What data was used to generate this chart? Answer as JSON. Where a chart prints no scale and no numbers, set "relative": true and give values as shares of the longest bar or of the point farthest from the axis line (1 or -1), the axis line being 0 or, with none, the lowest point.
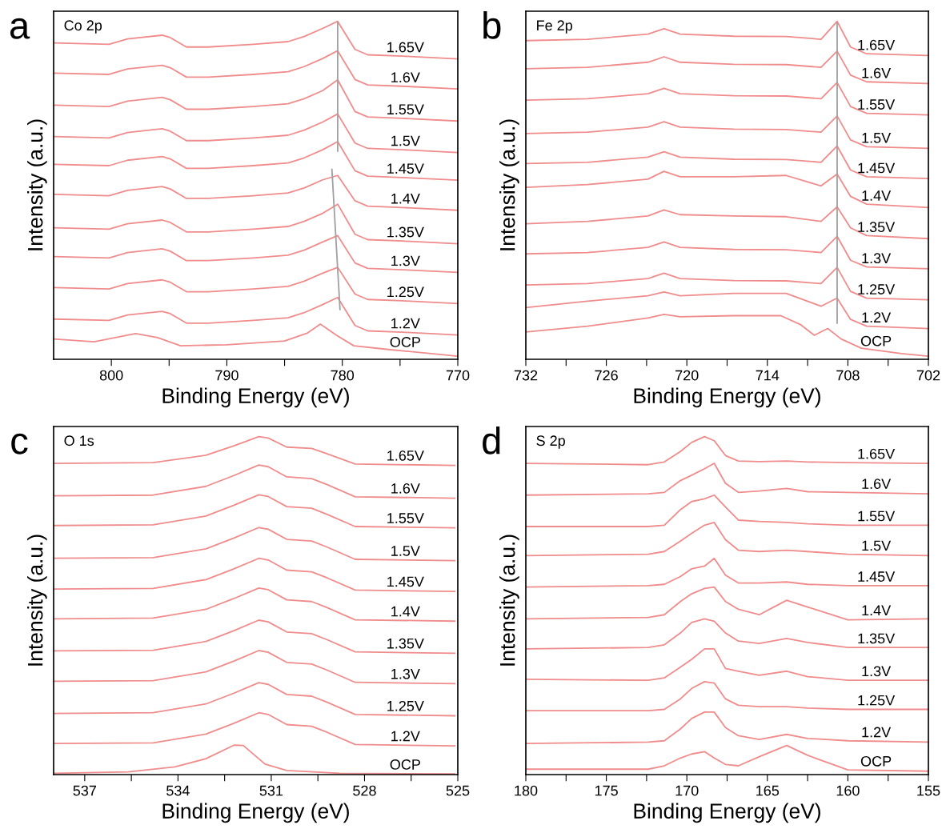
{
  "chart_data": [
    {
      "type": "line",
      "relative": true,
      "title": "Co 2p",
      "annotations": [
        "a"
      ],
      "xlabel": "Binding Energy (eV)",
      "ylabel": "Intensity (a.u.)",
      "xlim": [
        805,
        770
      ],
      "xticks": [
        800,
        {
          "value": 795,
          "label": null
        },
        790,
        {
          "value": 785,
          "label": null
        },
        780,
        {
          "value": 775,
          "label": null
        },
        770
      ],
      "x": [
        805,
        800.2,
        798.6,
        795.6,
        794.9,
        793.5,
        791.6,
        787.7,
        784.7,
        783.3,
        781.7,
        780.4,
        778.9,
        777.8,
        774.8,
        770
      ],
      "series": [
        {
          "name": "1.65V",
          "color": "#f08c8c",
          "values": [
            0.936,
            0.932,
            0.948,
            0.959,
            0.952,
            0.924,
            0.924,
            0.932,
            0.94,
            0.955,
            0.979,
            1.0,
            0.917,
            0.901,
            0.897,
            0.889
          ]
        },
        {
          "name": "1.6V",
          "color": "#f08c8c",
          "values": [
            0.847,
            0.843,
            0.859,
            0.87,
            0.863,
            0.835,
            0.835,
            0.843,
            0.851,
            0.866,
            0.89,
            0.913,
            0.828,
            0.812,
            0.808,
            0.8
          ]
        },
        {
          "name": "1.55V",
          "color": "#f08c8c",
          "values": [
            0.752,
            0.748,
            0.764,
            0.775,
            0.768,
            0.74,
            0.74,
            0.748,
            0.756,
            0.771,
            0.795,
            0.827,
            0.733,
            0.717,
            0.713,
            0.705
          ]
        },
        {
          "name": "1.5V",
          "color": "#f08c8c",
          "values": [
            0.659,
            0.655,
            0.671,
            0.682,
            0.675,
            0.647,
            0.647,
            0.655,
            0.663,
            0.678,
            0.702,
            0.726,
            0.64,
            0.624,
            0.62,
            0.612
          ]
        },
        {
          "name": "1.45V",
          "color": "#f08c8c",
          "values": [
            0.577,
            0.573,
            0.589,
            0.6,
            0.593,
            0.565,
            0.565,
            0.573,
            0.581,
            0.596,
            0.62,
            0.644,
            0.558,
            0.542,
            0.538,
            0.53
          ]
        },
        {
          "name": "1.4V",
          "color": "#f08c8c",
          "values": [
            0.488,
            0.484,
            0.5,
            0.511,
            0.504,
            0.476,
            0.476,
            0.484,
            0.492,
            0.507,
            0.531,
            0.544,
            0.469,
            0.453,
            0.449,
            0.441
          ]
        },
        {
          "name": "1.35V",
          "color": "#f08c8c",
          "values": [
            0.389,
            0.385,
            0.401,
            0.412,
            0.405,
            0.377,
            0.377,
            0.385,
            0.393,
            0.408,
            0.432,
            0.459,
            0.37,
            0.354,
            0.35,
            0.342
          ]
        },
        {
          "name": "1.3V",
          "color": "#f08c8c",
          "values": [
            0.304,
            0.3,
            0.316,
            0.327,
            0.32,
            0.292,
            0.292,
            0.3,
            0.308,
            0.323,
            0.347,
            0.366,
            0.285,
            0.269,
            0.265,
            0.257
          ]
        },
        {
          "name": "1.25V",
          "color": "#f08c8c",
          "values": [
            0.212,
            0.208,
            0.224,
            0.235,
            0.228,
            0.2,
            0.2,
            0.208,
            0.216,
            0.231,
            0.255,
            0.272,
            0.193,
            0.177,
            0.173,
            0.165
          ]
        },
        {
          "name": "1.2V",
          "color": "#f08c8c",
          "values": [
            0.119,
            0.115,
            0.131,
            0.142,
            0.135,
            0.107,
            0.107,
            0.115,
            0.123,
            0.138,
            0.162,
            0.183,
            0.1,
            0.084,
            0.08,
            0.072
          ]
        },
        {
          "name": "OCP",
          "color": "#f08c8c",
          "x": [
            805,
            801.5,
            797.9,
            796,
            794,
            790,
            785,
            783,
            781.9,
            780.5,
            779,
            776,
            770
          ],
          "values": [
            0.06,
            0.052,
            0.076,
            0.064,
            0.04,
            0.043,
            0.054,
            0.078,
            0.104,
            0.071,
            0.04,
            0.029,
            0.009
          ]
        },
        {
          "color": "#a0a0a0",
          "x": [
            780.4,
            780.4
          ],
          "values": [
            0.998,
            0.616
          ]
        },
        {
          "color": "#a0a0a0",
          "x": [
            780.9,
            780.2
          ],
          "values": [
            0.562,
            0.147
          ]
        }
      ]
    },
    {
      "type": "line",
      "relative": true,
      "title": "Fe 2p",
      "annotations": [
        "b"
      ],
      "xlabel": "Binding Energy (eV)",
      "ylabel": "Intensity (a.u.)",
      "xlim": [
        732,
        702
      ],
      "xticks": [
        732,
        {
          "value": 729,
          "label": null
        },
        726,
        {
          "value": 723,
          "label": null
        },
        720,
        {
          "value": 717,
          "label": null
        },
        714,
        {
          "value": 711,
          "label": null
        },
        708,
        {
          "value": 705,
          "label": null
        },
        702
      ],
      "x": [
        732,
        727.4,
        722.9,
        721.7,
        720.5,
        716.5,
        712.6,
        710,
        708.8,
        707.8,
        706.6,
        702
      ],
      "series": [
        {
          "name": "1.65V",
          "color": "#f08c8c",
          "values": [
            0.943,
            0.947,
            0.962,
            0.978,
            0.962,
            0.956,
            0.955,
            0.947,
            1.0,
            0.924,
            0.904,
            0.899
          ]
        },
        {
          "name": "1.6V",
          "color": "#f08c8c",
          "values": [
            0.86,
            0.864,
            0.879,
            0.895,
            0.879,
            0.873,
            0.872,
            0.864,
            0.912,
            0.841,
            0.821,
            0.816
          ]
        },
        {
          "name": "1.55V",
          "color": "#f08c8c",
          "values": [
            0.767,
            0.771,
            0.786,
            0.802,
            0.786,
            0.78,
            0.779,
            0.771,
            0.819,
            0.748,
            0.728,
            0.723
          ]
        },
        {
          "name": "1.5V",
          "color": "#f08c8c",
          "values": [
            0.668,
            0.672,
            0.687,
            0.703,
            0.687,
            0.681,
            0.68,
            0.672,
            0.72,
            0.649,
            0.629,
            0.624
          ]
        },
        {
          "name": "1.45V",
          "color": "#f08c8c",
          "values": [
            0.579,
            0.583,
            0.598,
            0.614,
            0.598,
            0.592,
            0.591,
            0.583,
            0.631,
            0.56,
            0.54,
            0.535
          ]
        },
        {
          "name": "1.4V",
          "color": "#f08c8c",
          "values": [
            0.509,
            0.517,
            0.533,
            0.556,
            0.54,
            0.54,
            0.544,
            0.513,
            0.548,
            0.482,
            0.459,
            0.449
          ]
        },
        {
          "name": "1.35V",
          "color": "#f08c8c",
          "values": [
            0.401,
            0.408,
            0.424,
            0.442,
            0.428,
            0.424,
            0.422,
            0.408,
            0.451,
            0.389,
            0.366,
            0.357
          ]
        },
        {
          "name": "1.3V",
          "color": "#f08c8c",
          "values": [
            0.312,
            0.316,
            0.331,
            0.347,
            0.331,
            0.325,
            0.324,
            0.316,
            0.364,
            0.293,
            0.273,
            0.268
          ]
        },
        {
          "name": "1.25V",
          "color": "#f08c8c",
          "values": [
            0.22,
            0.224,
            0.239,
            0.255,
            0.239,
            0.233,
            0.232,
            0.224,
            0.272,
            0.201,
            0.181,
            0.176
          ]
        },
        {
          "name": "1.2V",
          "color": "#f08c8c",
          "values": [
            0.153,
            0.172,
            0.188,
            0.199,
            0.188,
            0.195,
            0.195,
            0.157,
            0.181,
            0.118,
            0.098,
            0.091
          ]
        },
        {
          "name": "OCP",
          "color": "#f08c8c",
          "x": [
            732,
            727.4,
            722.9,
            721.7,
            720.5,
            716.5,
            713,
            711.5,
            710.5,
            709.5,
            708.5,
            707,
            704,
            702
          ],
          "values": [
            0.081,
            0.098,
            0.122,
            0.133,
            0.126,
            0.129,
            0.129,
            0.102,
            0.071,
            0.091,
            0.06,
            0.033,
            0.017,
            0.009
          ]
        },
        {
          "color": "#a0a0a0",
          "x": [
            708.8,
            708.8
          ],
          "values": [
            0.995,
            0.107
          ]
        }
      ]
    },
    {
      "type": "line",
      "relative": true,
      "title": "O 1s",
      "annotations": [
        "c"
      ],
      "xlabel": "Binding Energy (eV)",
      "ylabel": "Intensity (a.u.)",
      "xlim": [
        538,
        525
      ],
      "xticks": [
        537,
        {
          "value": 535.5,
          "label": null
        },
        534,
        {
          "value": 532.5,
          "label": null
        },
        531,
        {
          "value": 529.5,
          "label": null
        },
        528,
        {
          "value": 526.5,
          "label": null
        },
        525
      ],
      "x": [
        538,
        534.8,
        533.1,
        532.2,
        531.4,
        531.1,
        530.5,
        529.7,
        529.2,
        528.3,
        525.1
      ],
      "series": [
        {
          "name": "1.65V",
          "color": "#f08c8c",
          "values": [
            0.921,
            0.923,
            0.945,
            0.973,
            1.0,
            0.996,
            0.969,
            0.965,
            0.949,
            0.919,
            0.915
          ]
        },
        {
          "name": "1.6V",
          "color": "#f08c8c",
          "values": [
            0.825,
            0.827,
            0.853,
            0.885,
            0.916,
            0.911,
            0.881,
            0.876,
            0.858,
            0.822,
            0.818
          ]
        },
        {
          "name": "1.55V",
          "color": "#f08c8c",
          "values": [
            0.737,
            0.739,
            0.765,
            0.797,
            0.828,
            0.823,
            0.793,
            0.788,
            0.77,
            0.734,
            0.73
          ]
        },
        {
          "name": "1.5V",
          "color": "#f08c8c",
          "values": [
            0.64,
            0.642,
            0.668,
            0.7,
            0.731,
            0.726,
            0.696,
            0.691,
            0.673,
            0.637,
            0.633
          ]
        },
        {
          "name": "1.45V",
          "color": "#f08c8c",
          "values": [
            0.549,
            0.551,
            0.577,
            0.609,
            0.64,
            0.635,
            0.605,
            0.6,
            0.582,
            0.546,
            0.542
          ]
        },
        {
          "name": "1.4V",
          "color": "#f08c8c",
          "values": [
            0.461,
            0.463,
            0.489,
            0.521,
            0.552,
            0.547,
            0.517,
            0.512,
            0.494,
            0.458,
            0.454
          ]
        },
        {
          "name": "1.35V",
          "color": "#f08c8c",
          "values": [
            0.366,
            0.368,
            0.394,
            0.426,
            0.457,
            0.452,
            0.422,
            0.417,
            0.399,
            0.363,
            0.359
          ]
        },
        {
          "name": "1.3V",
          "color": "#f08c8c",
          "values": [
            0.276,
            0.278,
            0.304,
            0.336,
            0.367,
            0.362,
            0.332,
            0.327,
            0.309,
            0.273,
            0.269
          ]
        },
        {
          "name": "1.25V",
          "color": "#f08c8c",
          "values": [
            0.181,
            0.183,
            0.209,
            0.241,
            0.272,
            0.267,
            0.237,
            0.232,
            0.214,
            0.178,
            0.174
          ]
        },
        {
          "name": "1.2V",
          "color": "#f08c8c",
          "values": [
            0.092,
            0.094,
            0.12,
            0.152,
            0.183,
            0.178,
            0.148,
            0.143,
            0.125,
            0.089,
            0.085
          ]
        },
        {
          "name": "OCP",
          "color": "#f08c8c",
          "x": [
            538,
            535.6,
            534.1,
            533.1,
            532.2,
            531.9,
            531.2,
            530.5,
            528.8,
            525.1
          ],
          "values": [
            0.004,
            0.008,
            0.023,
            0.047,
            0.087,
            0.086,
            0.031,
            0.012,
            0.004,
            0.002
          ]
        }
      ]
    },
    {
      "type": "line",
      "relative": true,
      "title": "S 2p",
      "annotations": [
        "d"
      ],
      "xlabel": "Binding Energy (eV)",
      "ylabel": "Intensity (a.u.)",
      "xlim": [
        180,
        155
      ],
      "xticks": [
        180,
        {
          "value": 177.5,
          "label": null
        },
        175,
        {
          "value": 172.5,
          "label": null
        },
        170,
        {
          "value": 167.5,
          "label": null
        },
        165,
        {
          "value": 162.5,
          "label": null
        },
        160,
        {
          "value": 157.5,
          "label": null
        },
        155
      ],
      "x": [
        180,
        172.4,
        171.4,
        170.4,
        169.7,
        168.9,
        168.3,
        167.6,
        166.8,
        165.5,
        163.8,
        162.5,
        160,
        155
      ],
      "series": [
        {
          "name": "1.65V",
          "color": "#f08c8c",
          "values": [
            0.921,
            0.917,
            0.925,
            0.956,
            0.983,
            1.0,
            0.988,
            0.944,
            0.928,
            0.926,
            0.928,
            0.925,
            0.923,
            0.921
          ]
        },
        {
          "name": "1.6V",
          "color": "#f08c8c",
          "values": [
            0.827,
            0.831,
            0.835,
            0.87,
            0.886,
            0.905,
            0.921,
            0.862,
            0.835,
            0.839,
            0.847,
            0.837,
            0.835,
            0.831
          ]
        },
        {
          "name": "1.55V",
          "color": "#f08c8c",
          "values": [
            0.734,
            0.734,
            0.738,
            0.784,
            0.808,
            0.816,
            0.827,
            0.792,
            0.753,
            0.749,
            0.746,
            0.742,
            0.738,
            0.738
          ]
        },
        {
          "name": "1.5V",
          "color": "#f08c8c",
          "values": [
            0.648,
            0.652,
            0.66,
            0.691,
            0.714,
            0.738,
            0.746,
            0.695,
            0.664,
            0.66,
            0.664,
            0.66,
            0.652,
            0.648
          ]
        },
        {
          "name": "1.45V",
          "color": "#f08c8c",
          "values": [
            0.555,
            0.559,
            0.563,
            0.586,
            0.609,
            0.617,
            0.64,
            0.59,
            0.567,
            0.567,
            0.57,
            0.563,
            0.559,
            0.559
          ]
        },
        {
          "name": "1.4V",
          "color": "#f08c8c",
          "values": [
            0.461,
            0.465,
            0.473,
            0.512,
            0.535,
            0.551,
            0.555,
            0.512,
            0.489,
            0.473,
            0.516,
            0.496,
            0.458,
            0.461
          ]
        },
        {
          "name": "1.35V",
          "color": "#f08c8c",
          "values": [
            0.372,
            0.376,
            0.384,
            0.419,
            0.45,
            0.461,
            0.454,
            0.419,
            0.395,
            0.388,
            0.403,
            0.391,
            0.376,
            0.376
          ]
        },
        {
          "name": "1.3V",
          "color": "#f08c8c",
          "values": [
            0.282,
            0.279,
            0.286,
            0.318,
            0.341,
            0.372,
            0.372,
            0.314,
            0.306,
            0.294,
            0.306,
            0.29,
            0.279,
            0.279
          ]
        },
        {
          "name": "1.25V",
          "color": "#f08c8c",
          "values": [
            0.189,
            0.189,
            0.193,
            0.224,
            0.255,
            0.275,
            0.271,
            0.224,
            0.205,
            0.201,
            0.201,
            0.197,
            0.193,
            0.193
          ]
        },
        {
          "name": "1.2V",
          "color": "#f08c8c",
          "values": [
            0.092,
            0.096,
            0.1,
            0.135,
            0.166,
            0.185,
            0.185,
            0.139,
            0.115,
            0.104,
            0.119,
            0.107,
            0.1,
            0.096
          ]
        },
        {
          "name": "OCP",
          "color": "#f08c8c",
          "values": [
            0.016,
            0.016,
            0.026,
            0.049,
            0.061,
            0.068,
            0.049,
            0.03,
            0.026,
            0.053,
            0.086,
            0.057,
            0.014,
            0.01
          ]
        }
      ]
    }
  ]
}
